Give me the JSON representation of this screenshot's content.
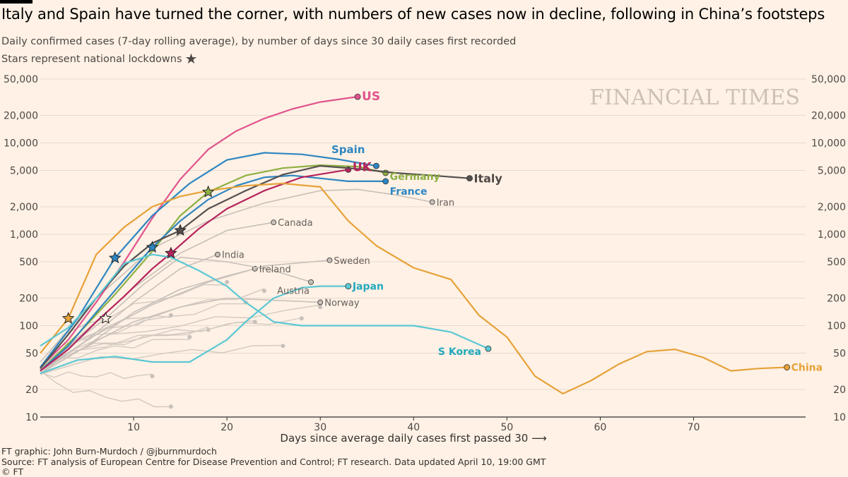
{
  "header": {
    "title": "Italy and Spain have turned the corner, with numbers of new cases now in decline, following in China’s footsteps",
    "subtitle": "Daily confirmed cases (7-day rolling average), by number of days since 30 daily cases first recorded",
    "lockdown_note": "Stars represent national lockdowns",
    "star_glyph": "★"
  },
  "watermark": "FINANCIAL TIMES",
  "footer": {
    "credit": "FT graphic: John Burn-Murdoch / @jburnmurdoch",
    "source": "Source: FT analysis of European Centre for Disease Prevention and Control; FT research. Data updated April 10, 19:00 GMT",
    "copyright": "© FT"
  },
  "chart_data": {
    "type": "line",
    "title": "Italy and Spain have turned the corner, with numbers of new cases now in decline, following in China’s footsteps",
    "xlabel": "Days since average daily cases first passed 30 ⟶",
    "ylabel": "",
    "x_ticks": [
      10,
      20,
      30,
      40,
      50,
      60,
      70
    ],
    "y_ticks": [
      10,
      20,
      50,
      100,
      200,
      500,
      1000,
      2000,
      5000,
      10000,
      20000,
      50000
    ],
    "y_tick_labels": [
      "10",
      "20",
      "50",
      "100",
      "200",
      "500",
      "1,000",
      "2,000",
      "5,000",
      "10,000",
      "20,000",
      "50,000"
    ],
    "xlim": [
      0,
      82
    ],
    "ylim": [
      10,
      50000
    ],
    "y_scale": "log",
    "grid": "horizontal",
    "colors": {
      "highlight_text": "#33302e",
      "background": "#fff1e5",
      "grey": "#c8c0ba"
    },
    "series": [
      {
        "name": "US",
        "color": "#e0548e",
        "label_color": "#e0548e",
        "x": [
          0,
          3,
          6,
          9,
          12,
          15,
          18,
          21,
          24,
          27,
          30,
          33,
          34
        ],
        "y": [
          35,
          70,
          180,
          500,
          1500,
          4000,
          8500,
          13500,
          18500,
          23500,
          28000,
          31000,
          32000
        ]
      },
      {
        "name": "Spain",
        "color": "#2e86c1",
        "label_color": "#2e86c1",
        "lockdown_day": 8,
        "x": [
          0,
          4,
          8,
          12,
          16,
          20,
          24,
          28,
          32,
          36
        ],
        "y": [
          35,
          120,
          550,
          1600,
          3600,
          6500,
          7800,
          7500,
          6600,
          5600
        ]
      },
      {
        "name": "Germany",
        "color": "#8db043",
        "label_color": "#8db043",
        "lockdown_day": 18,
        "x": [
          0,
          4,
          8,
          12,
          15,
          18,
          22,
          26,
          30,
          34,
          37
        ],
        "y": [
          32,
          80,
          220,
          650,
          1600,
          2900,
          4400,
          5300,
          5700,
          5500,
          4700
        ]
      },
      {
        "name": "France",
        "color": "#2e86c1",
        "label_color": "#2e86c1",
        "lockdown_day": 12,
        "x": [
          0,
          3,
          6,
          9,
          12,
          15,
          18,
          21,
          24,
          27,
          30,
          33,
          37
        ],
        "y": [
          32,
          60,
          140,
          320,
          720,
          1400,
          2400,
          3400,
          4200,
          4400,
          4100,
          3800,
          3800
        ]
      },
      {
        "name": "UK",
        "color": "#b5235d",
        "label_color": "#b5235d",
        "lockdown_day": 14,
        "x": [
          0,
          3,
          6,
          9,
          12,
          14,
          17,
          20,
          24,
          28,
          33
        ],
        "y": [
          32,
          55,
          110,
          210,
          420,
          620,
          1150,
          1900,
          3000,
          4200,
          5100
        ]
      },
      {
        "name": "Italy",
        "color": "#555050",
        "label_color": "#4d4845",
        "lockdown_day": 15,
        "x": [
          0,
          3,
          6,
          9,
          12,
          15,
          18,
          22,
          26,
          30,
          34,
          38,
          42,
          46
        ],
        "y": [
          34,
          80,
          200,
          450,
          800,
          1100,
          1900,
          3000,
          4500,
          5600,
          5200,
          4700,
          4400,
          4100
        ]
      },
      {
        "name": "China",
        "color": "#e6a239",
        "label_color": "#e6a239",
        "lockdown_day": 3,
        "x": [
          0,
          3,
          6,
          9,
          12,
          15,
          18,
          22,
          26,
          30,
          33,
          36,
          40,
          44,
          47,
          50,
          53,
          56,
          59,
          62,
          65,
          68,
          71,
          74,
          77,
          80
        ],
        "y": [
          50,
          120,
          600,
          1200,
          2000,
          2600,
          3000,
          3400,
          3600,
          3300,
          1400,
          750,
          430,
          320,
          130,
          75,
          28,
          18,
          25,
          38,
          52,
          55,
          45,
          32,
          34,
          35
        ]
      },
      {
        "name": "S Korea",
        "color": "#5bc8d4",
        "label_color": "#22a9bd",
        "x": [
          0,
          3,
          6,
          9,
          12,
          14,
          17,
          20,
          22,
          25,
          28,
          32,
          36,
          40,
          44,
          48
        ],
        "y": [
          60,
          95,
          200,
          480,
          600,
          560,
          400,
          270,
          180,
          110,
          100,
          100,
          100,
          100,
          85,
          56
        ]
      },
      {
        "name": "Japan",
        "color": "#5bc8d4",
        "label_color": "#22a9bd",
        "x": [
          0,
          4,
          8,
          12,
          16,
          20,
          22,
          25,
          28,
          30,
          33
        ],
        "y": [
          30,
          42,
          46,
          40,
          40,
          70,
          110,
          200,
          260,
          270,
          270
        ]
      },
      {
        "name": "Iran",
        "color": "#c8c0ba",
        "label_color": "#66605c",
        "x": [
          0,
          6,
          12,
          18,
          24,
          30,
          34,
          38,
          42
        ],
        "y": [
          40,
          200,
          700,
          1400,
          2200,
          3000,
          3100,
          2700,
          2250
        ]
      },
      {
        "name": "Canada",
        "color": "#c8c0ba",
        "label_color": "#66605c",
        "x": [
          0,
          5,
          10,
          15,
          20,
          25
        ],
        "y": [
          32,
          90,
          260,
          620,
          1100,
          1350
        ]
      },
      {
        "name": "India",
        "color": "#c8c0ba",
        "label_color": "#66605c",
        "x": [
          0,
          5,
          10,
          15,
          19
        ],
        "y": [
          30,
          70,
          180,
          420,
          600
        ]
      },
      {
        "name": "Sweden",
        "color": "#c8c0ba",
        "label_color": "#66605c",
        "x": [
          0,
          6,
          12,
          18,
          24,
          31
        ],
        "y": [
          32,
          80,
          170,
          300,
          450,
          520
        ]
      },
      {
        "name": "Ireland",
        "color": "#c8c0ba",
        "label_color": "#66605c",
        "x": [
          0,
          5,
          10,
          15,
          20,
          23
        ],
        "y": [
          30,
          60,
          140,
          250,
          350,
          420
        ]
      },
      {
        "name": "Austria",
        "color": "#c8c0ba",
        "label_color": "#66605c",
        "lockdown_day": 7,
        "x": [
          0,
          4,
          7,
          11,
          15,
          20,
          25,
          29
        ],
        "y": [
          32,
          70,
          120,
          280,
          560,
          500,
          400,
          300
        ]
      },
      {
        "name": "Norway",
        "color": "#c8c0ba",
        "label_color": "#66605c",
        "x": [
          0,
          5,
          10,
          15,
          20,
          25,
          30
        ],
        "y": [
          30,
          60,
          110,
          160,
          200,
          190,
          180
        ]
      }
    ]
  }
}
